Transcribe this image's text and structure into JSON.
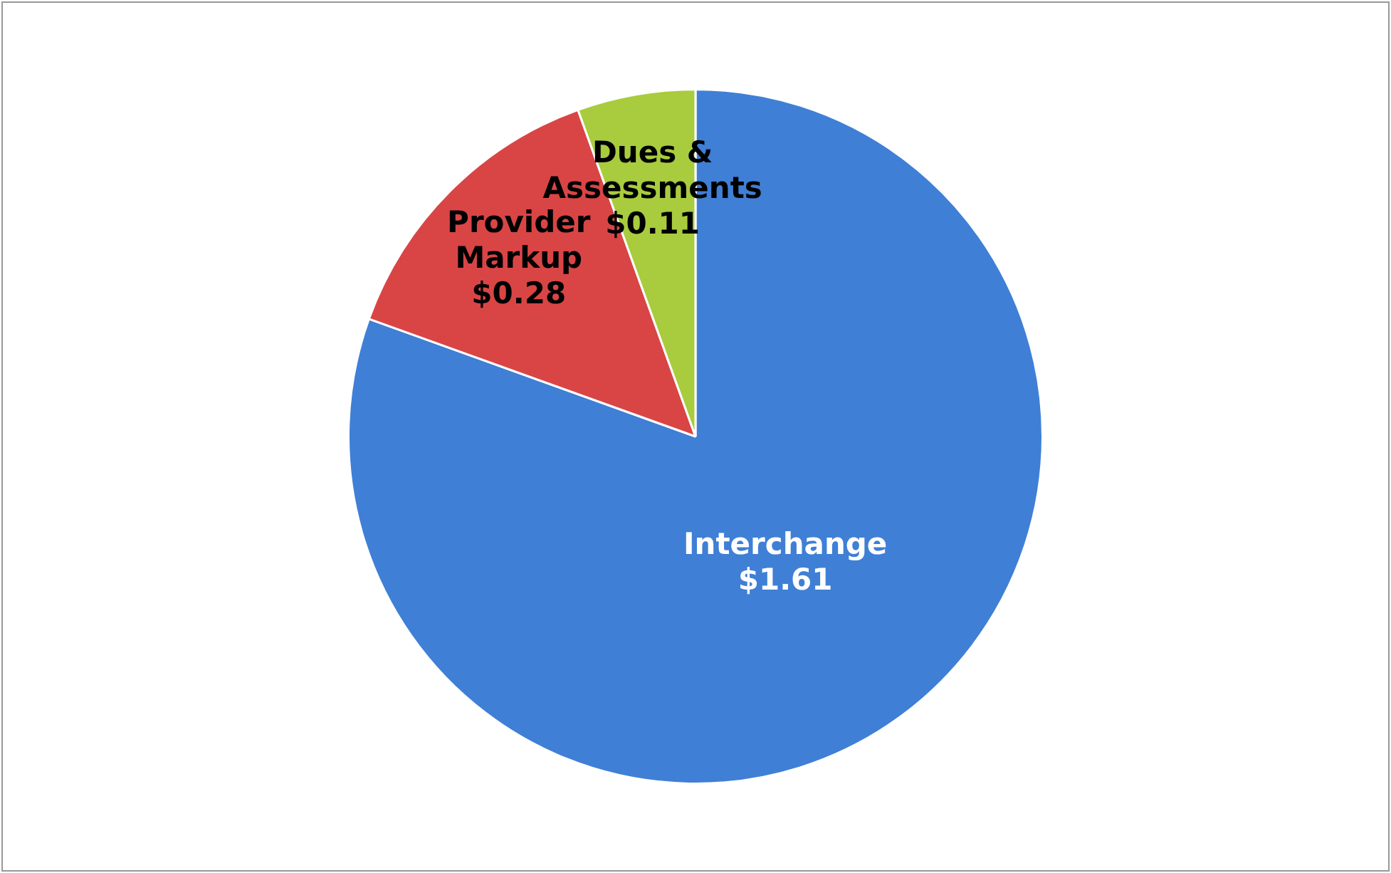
{
  "chart_data": {
    "type": "pie",
    "categories": [
      "Interchange",
      "Provider Markup",
      "Dues & Assessments"
    ],
    "values": [
      1.61,
      0.28,
      0.11
    ],
    "colors": [
      "#3f7fd6",
      "#d94545",
      "#a8cc3e"
    ],
    "value_labels": [
      "$1.61",
      "$0.28",
      "$0.11"
    ],
    "legend": false
  }
}
